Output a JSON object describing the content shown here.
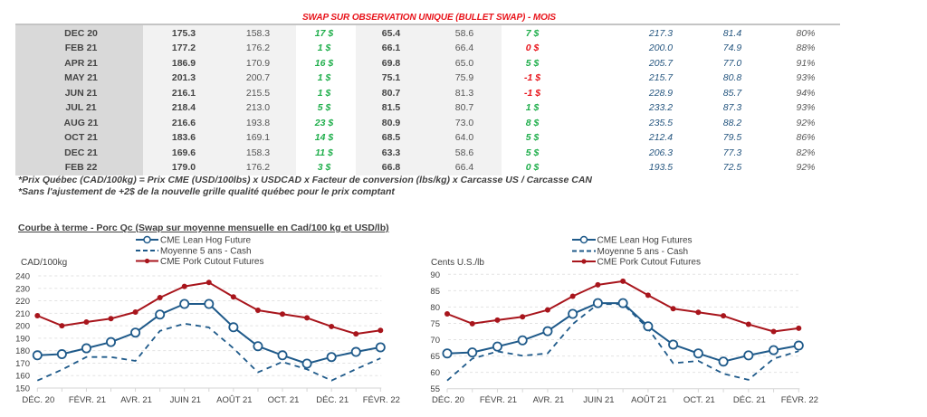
{
  "title": "SWAP SUR OBSERVATION UNIQUE (BULLET SWAP) - MOIS",
  "colors": {
    "title_red": "#e8141b",
    "positive_green": "#1fae4b",
    "negative_red": "#e8141b",
    "value_blue": "#24557f",
    "lean_hog_blue": "#1f5a8a",
    "cutout_red": "#a8151c"
  },
  "table": {
    "rows": [
      {
        "month": "DEC 20",
        "c1": "175.3",
        "c2": "158.3",
        "s1": {
          "text": "17 $",
          "tone": "positive"
        },
        "c4": "65.4",
        "c5": "58.6",
        "s2": {
          "text": "7 $",
          "tone": "positive"
        },
        "c7": "217.3",
        "c8": "81.4",
        "pct": "80%"
      },
      {
        "month": "FEB 21",
        "c1": "177.2",
        "c2": "176.2",
        "s1": {
          "text": "1 $",
          "tone": "positive"
        },
        "c4": "66.1",
        "c5": "66.4",
        "s2": {
          "text": "0 $",
          "tone": "negative"
        },
        "c7": "200.0",
        "c8": "74.9",
        "pct": "88%"
      },
      {
        "month": "APR 21",
        "c1": "186.9",
        "c2": "170.9",
        "s1": {
          "text": "16 $",
          "tone": "positive"
        },
        "c4": "69.8",
        "c5": "65.0",
        "s2": {
          "text": "5 $",
          "tone": "positive"
        },
        "c7": "205.7",
        "c8": "77.0",
        "pct": "91%"
      },
      {
        "month": "MAY 21",
        "c1": "201.3",
        "c2": "200.7",
        "s1": {
          "text": "1 $",
          "tone": "positive"
        },
        "c4": "75.1",
        "c5": "75.9",
        "s2": {
          "text": "-1 $",
          "tone": "negative"
        },
        "c7": "215.7",
        "c8": "80.8",
        "pct": "93%"
      },
      {
        "month": "JUN 21",
        "c1": "216.1",
        "c2": "215.5",
        "s1": {
          "text": "1 $",
          "tone": "positive"
        },
        "c4": "80.7",
        "c5": "81.3",
        "s2": {
          "text": "-1 $",
          "tone": "negative"
        },
        "c7": "228.9",
        "c8": "85.7",
        "pct": "94%"
      },
      {
        "month": "JUL 21",
        "c1": "218.4",
        "c2": "213.0",
        "s1": {
          "text": "5 $",
          "tone": "positive"
        },
        "c4": "81.5",
        "c5": "80.7",
        "s2": {
          "text": "1 $",
          "tone": "positive"
        },
        "c7": "233.2",
        "c8": "87.3",
        "pct": "93%"
      },
      {
        "month": "AUG 21",
        "c1": "216.6",
        "c2": "193.8",
        "s1": {
          "text": "23 $",
          "tone": "positive"
        },
        "c4": "80.9",
        "c5": "73.0",
        "s2": {
          "text": "8 $",
          "tone": "positive"
        },
        "c7": "235.5",
        "c8": "88.2",
        "pct": "92%"
      },
      {
        "month": "OCT 21",
        "c1": "183.6",
        "c2": "169.1",
        "s1": {
          "text": "14 $",
          "tone": "positive"
        },
        "c4": "68.5",
        "c5": "64.0",
        "s2": {
          "text": "5 $",
          "tone": "positive"
        },
        "c7": "212.4",
        "c8": "79.5",
        "pct": "86%"
      },
      {
        "month": "DEC 21",
        "c1": "169.6",
        "c2": "158.3",
        "s1": {
          "text": "11 $",
          "tone": "positive"
        },
        "c4": "63.3",
        "c5": "58.6",
        "s2": {
          "text": "5 $",
          "tone": "positive"
        },
        "c7": "206.3",
        "c8": "77.3",
        "pct": "82%"
      },
      {
        "month": "FEB 22",
        "c1": "179.0",
        "c2": "176.2",
        "s1": {
          "text": "3 $",
          "tone": "positive"
        },
        "c4": "66.8",
        "c5": "66.4",
        "s2": {
          "text": "0 $",
          "tone": "positive"
        },
        "c7": "193.5",
        "c8": "72.5",
        "pct": "92%"
      }
    ]
  },
  "footnotes": [
    "*Prix Québec (CAD/100kg) = Prix CME (USD/100lbs) x USDCAD x Facteur de conversion (lbs/kg) x Carcasse US / Carcasse CAN",
    "*Sans l'ajustement de +2$ de la nouvelle grille qualité québec pour le prix comptant"
  ],
  "chart_section_title": "Courbe à terme - Porc Qc (Swap sur moyenne mensuelle en Cad/100 kg et USD/lb)",
  "chart_data": [
    {
      "type": "line",
      "title": "",
      "xlabel": "",
      "ylabel": "CAD/100kg",
      "x_labels": [
        "DÉC. 20",
        "",
        "FÉVR. 21",
        "",
        "AVR. 21",
        "",
        "JUIN 21",
        "",
        "AOÛT 21",
        "",
        "OCT. 21",
        "",
        "DÉC. 21",
        "",
        "FÉVR. 22"
      ],
      "ylim": [
        150,
        240
      ],
      "yticks": [
        150,
        160,
        170,
        180,
        190,
        200,
        210,
        220,
        230,
        240
      ],
      "grid": true,
      "legend": "top-center",
      "series": [
        {
          "name": "CME Lean Hog Future",
          "line": "solid",
          "marker": "open-circle",
          "color": "#1f5a8a",
          "values": [
            176.3,
            177.2,
            181.9,
            186.9,
            194.5,
            209.0,
            217.5,
            217.5,
            198.8,
            183.6,
            176.3,
            169.6,
            174.9,
            179.0,
            182.7
          ]
        },
        {
          "name": "Moyenne 5 ans - Cash",
          "line": "dashed",
          "marker": "none",
          "color": "#1f5a8a",
          "values": [
            156.0,
            164.7,
            174.9,
            174.9,
            171.8,
            195.9,
            201.7,
            198.6,
            181.9,
            162.6,
            171.0,
            165.0,
            156.0,
            165.2,
            173.9
          ]
        },
        {
          "name": "CME Pork Cutout Futures",
          "line": "solid",
          "marker": "filled-dot",
          "color": "#a8151c",
          "values": [
            208.1,
            200.0,
            203.0,
            205.7,
            211.0,
            222.6,
            231.6,
            234.7,
            223.1,
            212.4,
            209.3,
            206.3,
            199.4,
            193.5,
            196.3
          ]
        }
      ]
    },
    {
      "type": "line",
      "title": "",
      "xlabel": "",
      "ylabel": "Cents U.S./lb",
      "x_labels": [
        "DÉC. 20",
        "",
        "FÉVR. 21",
        "",
        "AVR. 21",
        "",
        "JUIN 21",
        "",
        "AOÛT 21",
        "",
        "OCT. 21",
        "",
        "DÉC. 21",
        "",
        "FÉVR. 22"
      ],
      "ylim": [
        55,
        90
      ],
      "yticks": [
        55,
        60,
        65,
        70,
        75,
        80,
        85,
        90
      ],
      "grid": true,
      "legend": "top-center",
      "series": [
        {
          "name": "CME Lean Hog Futures",
          "line": "solid",
          "marker": "open-circle",
          "color": "#1f5a8a",
          "values": [
            65.8,
            66.1,
            67.9,
            69.8,
            72.6,
            77.9,
            81.2,
            81.2,
            74.1,
            68.5,
            65.8,
            63.3,
            65.2,
            66.8,
            68.2
          ]
        },
        {
          "name": "Moyenne 5 ans - Cash",
          "line": "dashed",
          "marker": "none",
          "color": "#1f5a8a",
          "values": [
            57.5,
            64.2,
            66.4,
            65.1,
            65.8,
            74.8,
            80.9,
            80.9,
            73.4,
            62.8,
            63.5,
            59.6,
            57.7,
            64.2,
            66.5
          ]
        },
        {
          "name": "CME Pork Cutout Futures",
          "line": "solid",
          "marker": "filled-dot",
          "color": "#a8151c",
          "values": [
            77.9,
            74.9,
            76.0,
            77.0,
            79.1,
            83.3,
            86.8,
            87.9,
            83.6,
            79.5,
            78.4,
            77.3,
            74.7,
            72.5,
            73.5
          ]
        }
      ]
    }
  ]
}
